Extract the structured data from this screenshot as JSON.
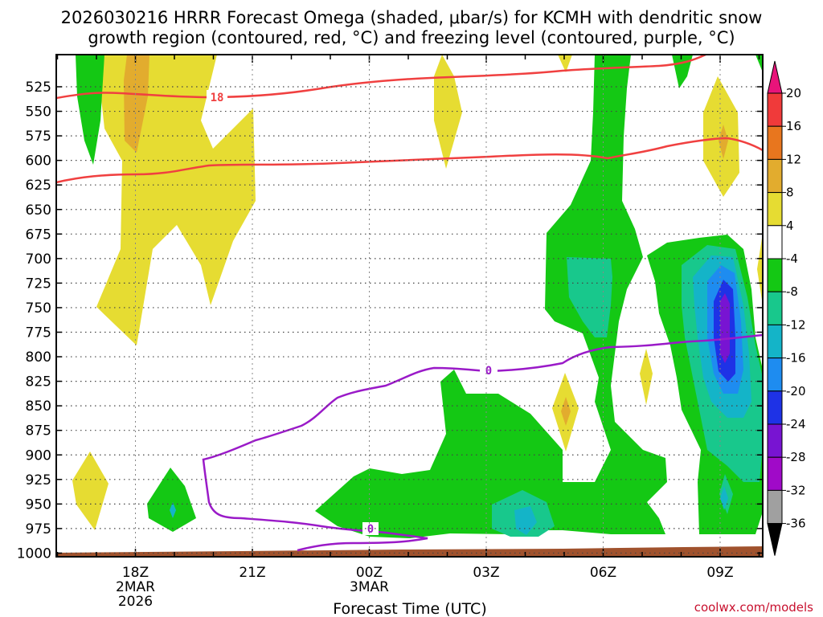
{
  "chart_data": {
    "type": "heatmap",
    "title_line1": "2026030216 HRRR Forecast Omega (shaded, μbar/s) for KCMH with dendritic snow",
    "title_line2": "growth region (contoured, red, °C) and freezing level (contoured, purple, °C)",
    "xlabel": "Forecast Time (UTC)",
    "credit": "coolwx.com/models",
    "y_ticks": [
      "525",
      "550",
      "575",
      "600",
      "625",
      "650",
      "675",
      "700",
      "725",
      "750",
      "775",
      "800",
      "825",
      "850",
      "875",
      "900",
      "925",
      "950",
      "975",
      "1000"
    ],
    "y_values": [
      525,
      550,
      575,
      600,
      625,
      650,
      675,
      700,
      725,
      750,
      775,
      800,
      825,
      850,
      875,
      900,
      925,
      950,
      975,
      1000
    ],
    "x_ticks": [
      {
        "hour": 2,
        "lines": [
          "18Z",
          "2MAR",
          "2026"
        ]
      },
      {
        "hour": 5,
        "lines": [
          "21Z"
        ]
      },
      {
        "hour": 8,
        "lines": [
          "00Z",
          "3MAR"
        ]
      },
      {
        "hour": 11,
        "lines": [
          "03Z"
        ]
      },
      {
        "hour": 14,
        "lines": [
          "06Z"
        ]
      },
      {
        "hour": 17,
        "lines": [
          "09Z"
        ]
      }
    ],
    "colorbar": {
      "labels": [
        "20",
        "16",
        "12",
        "8",
        "4",
        "-4",
        "-8",
        "-12",
        "-16",
        "-20",
        "-24",
        "-28",
        "-32",
        "-36"
      ],
      "colors": [
        "#f03a3a",
        "#e8761e",
        "#e2ac2e",
        "#e6dc32",
        "#ffffff",
        "#14c814",
        "#18c88c",
        "#14b4c8",
        "#1e8cf0",
        "#1e32e6",
        "#7814d2",
        "#a00ac8",
        "#a0a0a0"
      ],
      "top_cap": "#e8147a",
      "bottom_cap": "#000000"
    },
    "contour_labels": {
      "dgz": "18",
      "freezing": [
        "0",
        "0"
      ]
    },
    "colors": {
      "dgz": "#f04040",
      "freezing": "#9a1ac8",
      "ground": "#a0522d",
      "gridline": "#444444"
    }
  }
}
